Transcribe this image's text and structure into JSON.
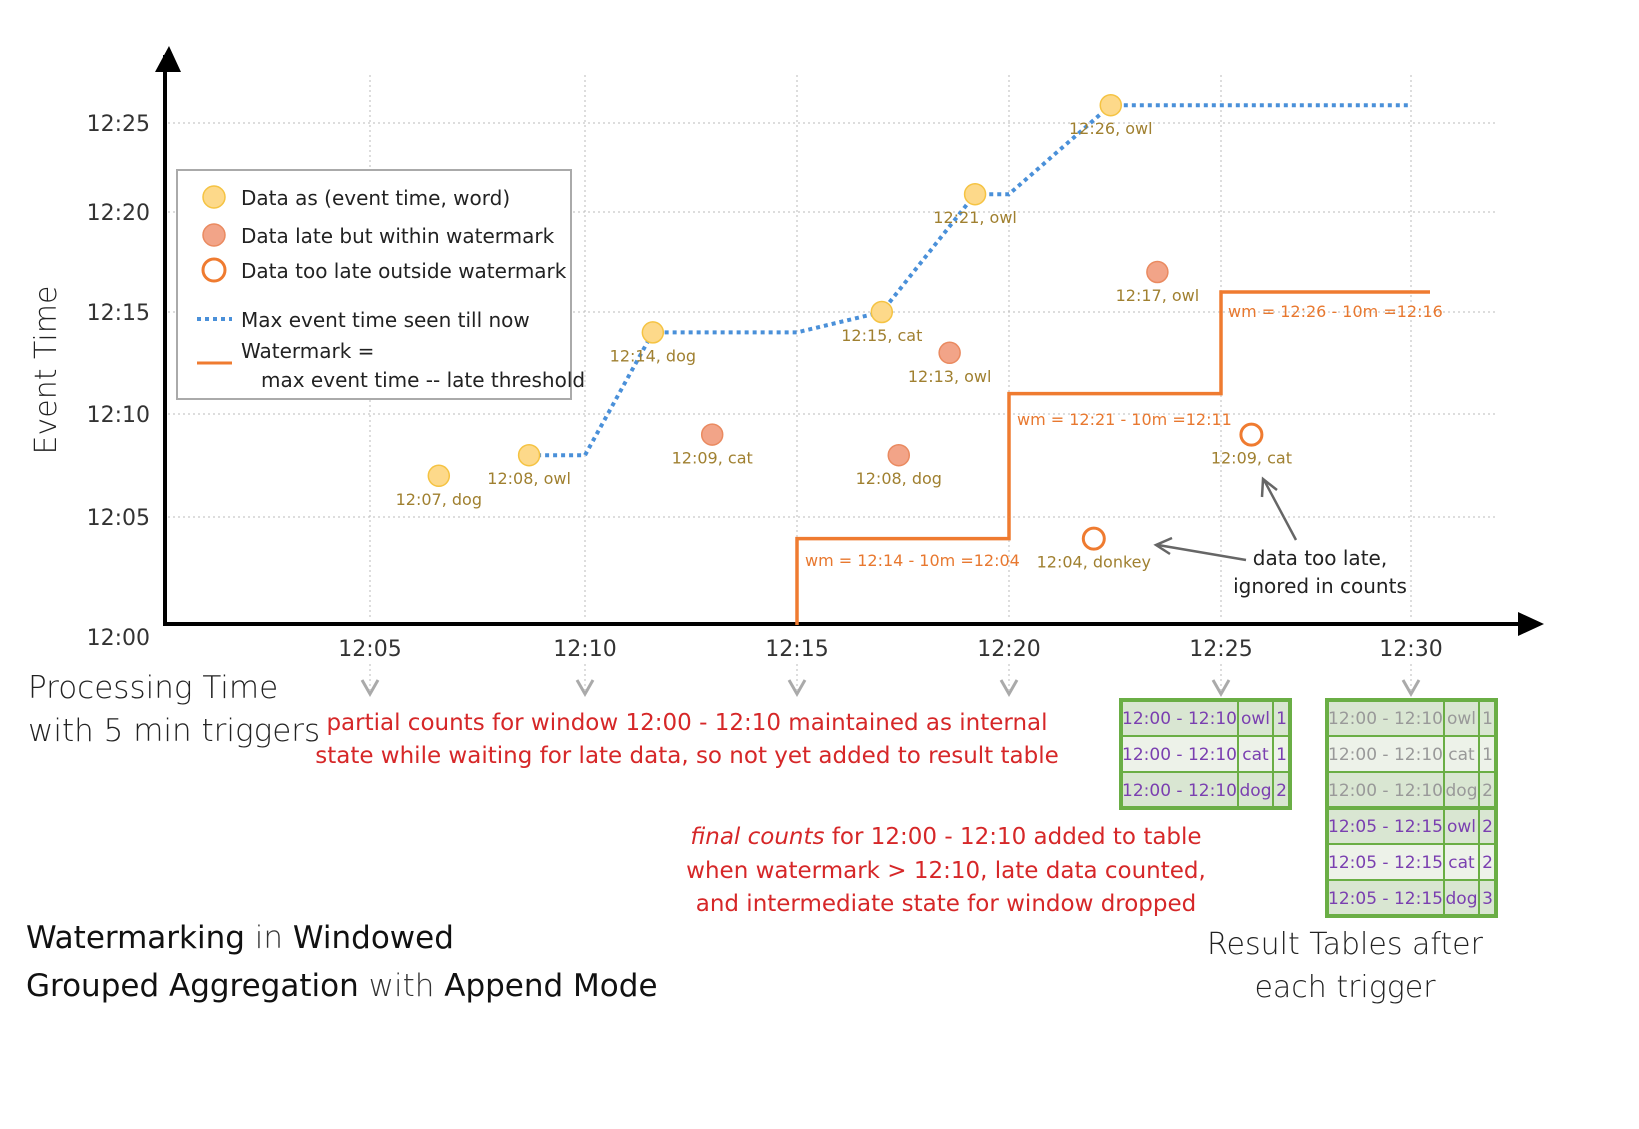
{
  "colors": {
    "normal": "#fdd98a",
    "late": "#f2a488",
    "too_late": "#ef7b30",
    "max_line": "#4a90d9",
    "watermark": "#ef7b30",
    "annotation": "#d62728",
    "table_border": "#6aae45",
    "table_text": "#7a3fb0",
    "table_old_text": "#999999"
  },
  "y_axis": {
    "label": "Event Time",
    "ticks": [
      "12:00",
      "12:05",
      "12:10",
      "12:15",
      "12:20",
      "12:25"
    ]
  },
  "x_axis": {
    "label_line1": "Processing Time",
    "label_line2": "with 5 min triggers",
    "ticks": [
      "12:05",
      "12:10",
      "12:15",
      "12:20",
      "12:25",
      "12:30"
    ]
  },
  "legend": {
    "normal": "Data as (event time, word)",
    "late": "Data late but within watermark",
    "too_late": "Data too late outside watermark",
    "max": "Max event time seen till now",
    "wm1": "Watermark =",
    "wm2": "max event time -- late threshold"
  },
  "points": [
    {
      "proc": "12:06.6",
      "event": "12:07",
      "label": "12:07, dog",
      "kind": "normal"
    },
    {
      "proc": "12:08.7",
      "event": "12:08",
      "label": "12:08, owl",
      "kind": "normal"
    },
    {
      "proc": "12:11.6",
      "event": "12:14",
      "label": "12:14, dog",
      "kind": "normal"
    },
    {
      "proc": "12:13.0",
      "event": "12:09",
      "label": "12:09, cat",
      "kind": "late"
    },
    {
      "proc": "12:17.0",
      "event": "12:15",
      "label": "12:15, cat",
      "kind": "normal"
    },
    {
      "proc": "12:17.4",
      "event": "12:08",
      "label": "12:08, dog",
      "kind": "late"
    },
    {
      "proc": "12:18.6",
      "event": "12:13",
      "label": "12:13, owl",
      "kind": "late"
    },
    {
      "proc": "12:19.2",
      "event": "12:21",
      "label": "12:21, owl",
      "kind": "normal"
    },
    {
      "proc": "12:22.0",
      "event": "12:04",
      "label": "12:04, donkey",
      "kind": "too_late"
    },
    {
      "proc": "12:22.4",
      "event": "12:26",
      "label": "12:26, owl",
      "kind": "normal"
    },
    {
      "proc": "12:23.5",
      "event": "12:17",
      "label": "12:17, owl",
      "kind": "late"
    },
    {
      "proc": "12:25.8",
      "event": "12:09",
      "label": "12:09, cat",
      "kind": "too_late"
    }
  ],
  "max_event_line": [
    [
      "12:08.7",
      "12:08"
    ],
    [
      "12:10",
      "12:08"
    ],
    [
      "12:11.6",
      "12:14"
    ],
    [
      "12:15",
      "12:14"
    ],
    [
      "12:17",
      "12:15"
    ],
    [
      "12:19.2",
      "12:21"
    ],
    [
      "12:20",
      "12:21"
    ],
    [
      "12:22.4",
      "12:26"
    ],
    [
      "12:30",
      "12:26"
    ]
  ],
  "watermark_line": [
    [
      "12:15",
      "12:00"
    ],
    [
      "12:15",
      "12:04"
    ],
    [
      "12:20",
      "12:04"
    ],
    [
      "12:20",
      "12:11"
    ],
    [
      "12:25",
      "12:11"
    ],
    [
      "12:25",
      "12:16"
    ],
    [
      "12:30.5",
      "12:16"
    ]
  ],
  "watermark_labels": [
    "wm = 12:14 - 10m =12:04",
    "wm = 12:21 - 10m =12:11",
    "wm = 12:26 - 10m =12:16"
  ],
  "notes": {
    "too_late_1": "data too late,",
    "too_late_2": "ignored in counts",
    "partial_1": "partial counts for window 12:00 - 12:10 maintained as internal",
    "partial_2": "state while waiting for late data, so not yet added  to result table",
    "final_em": "final counts",
    "final_1": " for 12:00 - 12:10 added to table",
    "final_2": "when watermark > 12:10, late data counted,",
    "final_3": "and intermediate state for window dropped"
  },
  "tables": {
    "t1": [
      [
        "12:00 - 12:10",
        "owl",
        "1"
      ],
      [
        "12:00 - 12:10",
        "cat",
        "1"
      ],
      [
        "12:00 - 12:10",
        "dog",
        "2"
      ]
    ],
    "t2_old": [
      [
        "12:00 - 12:10",
        "owl",
        "1"
      ],
      [
        "12:00 - 12:10",
        "cat",
        "1"
      ],
      [
        "12:00 - 12:10",
        "dog",
        "2"
      ]
    ],
    "t2_new": [
      [
        "12:05 - 12:15",
        "owl",
        "2"
      ],
      [
        "12:05 - 12:15",
        "cat",
        "2"
      ],
      [
        "12:05 - 12:15",
        "dog",
        "3"
      ]
    ],
    "caption1": "Result Tables after",
    "caption2": "each trigger"
  },
  "title": {
    "a": "Watermarking",
    "b": " in ",
    "c": "Windowed",
    "d": "Grouped Aggregation",
    "e": " with ",
    "f": "Append Mode"
  }
}
